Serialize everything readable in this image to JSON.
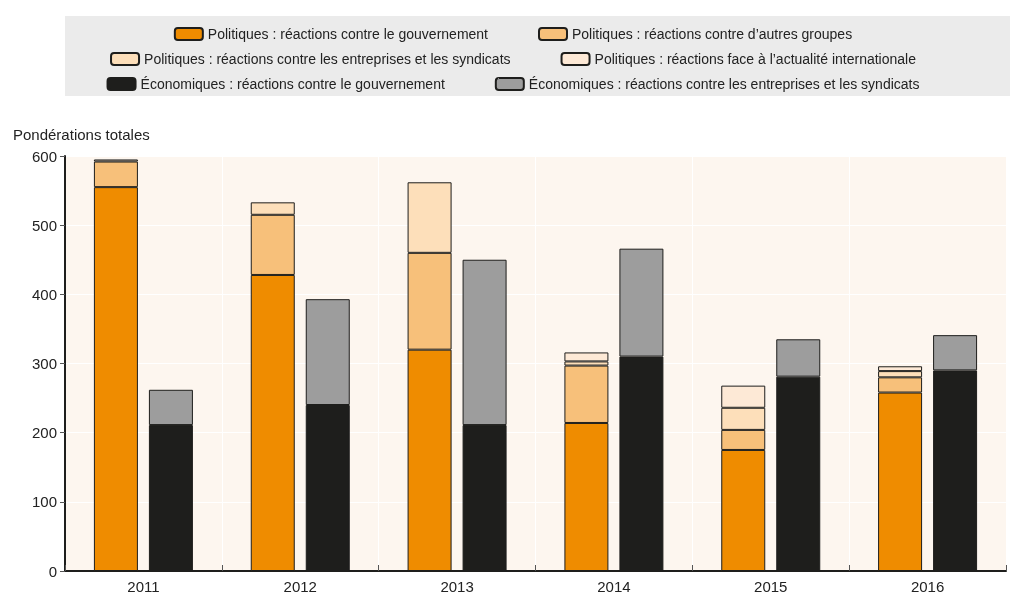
{
  "chart_data": [
    {
      "type": "bar",
      "stacked": true,
      "ylabel": "Pondérations totales",
      "categories": [
        "2011",
        "2012",
        "2013",
        "2014",
        "2015",
        "2016"
      ],
      "series": [
        {
          "name": "Politiques : réactions contre le gouvernement",
          "color": "#ef8c00",
          "values": [
            555,
            428,
            320,
            214,
            175,
            258
          ]
        },
        {
          "name": "Politiques : réactions contre d’autres groupes",
          "color": "#f7c07a",
          "values": [
            37,
            87,
            140,
            83,
            29,
            22
          ]
        },
        {
          "name": "Politiques : réactions contre les entreprises et les syndicats",
          "color": "#fddfba",
          "values": [
            0,
            18,
            102,
            6,
            32,
            9
          ]
        },
        {
          "name": "Politiques : réactions face à l’actualité internationale",
          "color": "#fde9d6",
          "values": [
            3,
            0,
            0,
            13,
            32,
            7
          ]
        }
      ],
      "ylim": [
        0,
        600
      ],
      "yticks": [
        0,
        100,
        200,
        300,
        400,
        500,
        600
      ],
      "grid": true,
      "legend": "top"
    },
    {
      "type": "bar",
      "stacked": true,
      "categories": [
        "2011",
        "2012",
        "2013",
        "2014",
        "2015",
        "2016"
      ],
      "series": [
        {
          "name": "Économiques : réactions contre le gouvernement",
          "color": "#1e1e1c",
          "values": [
            211,
            240,
            211,
            310,
            281,
            290
          ]
        },
        {
          "name": "Économiques : réactions contre les entreprises et les syndicats",
          "color": "#9d9d9d",
          "values": [
            51,
            153,
            239,
            156,
            54,
            51
          ]
        }
      ],
      "ylim": [
        0,
        600
      ],
      "yticks": [
        0,
        100,
        200,
        300,
        400,
        500,
        600
      ],
      "legend": "top",
      "tick_labels": false
    }
  ]
}
